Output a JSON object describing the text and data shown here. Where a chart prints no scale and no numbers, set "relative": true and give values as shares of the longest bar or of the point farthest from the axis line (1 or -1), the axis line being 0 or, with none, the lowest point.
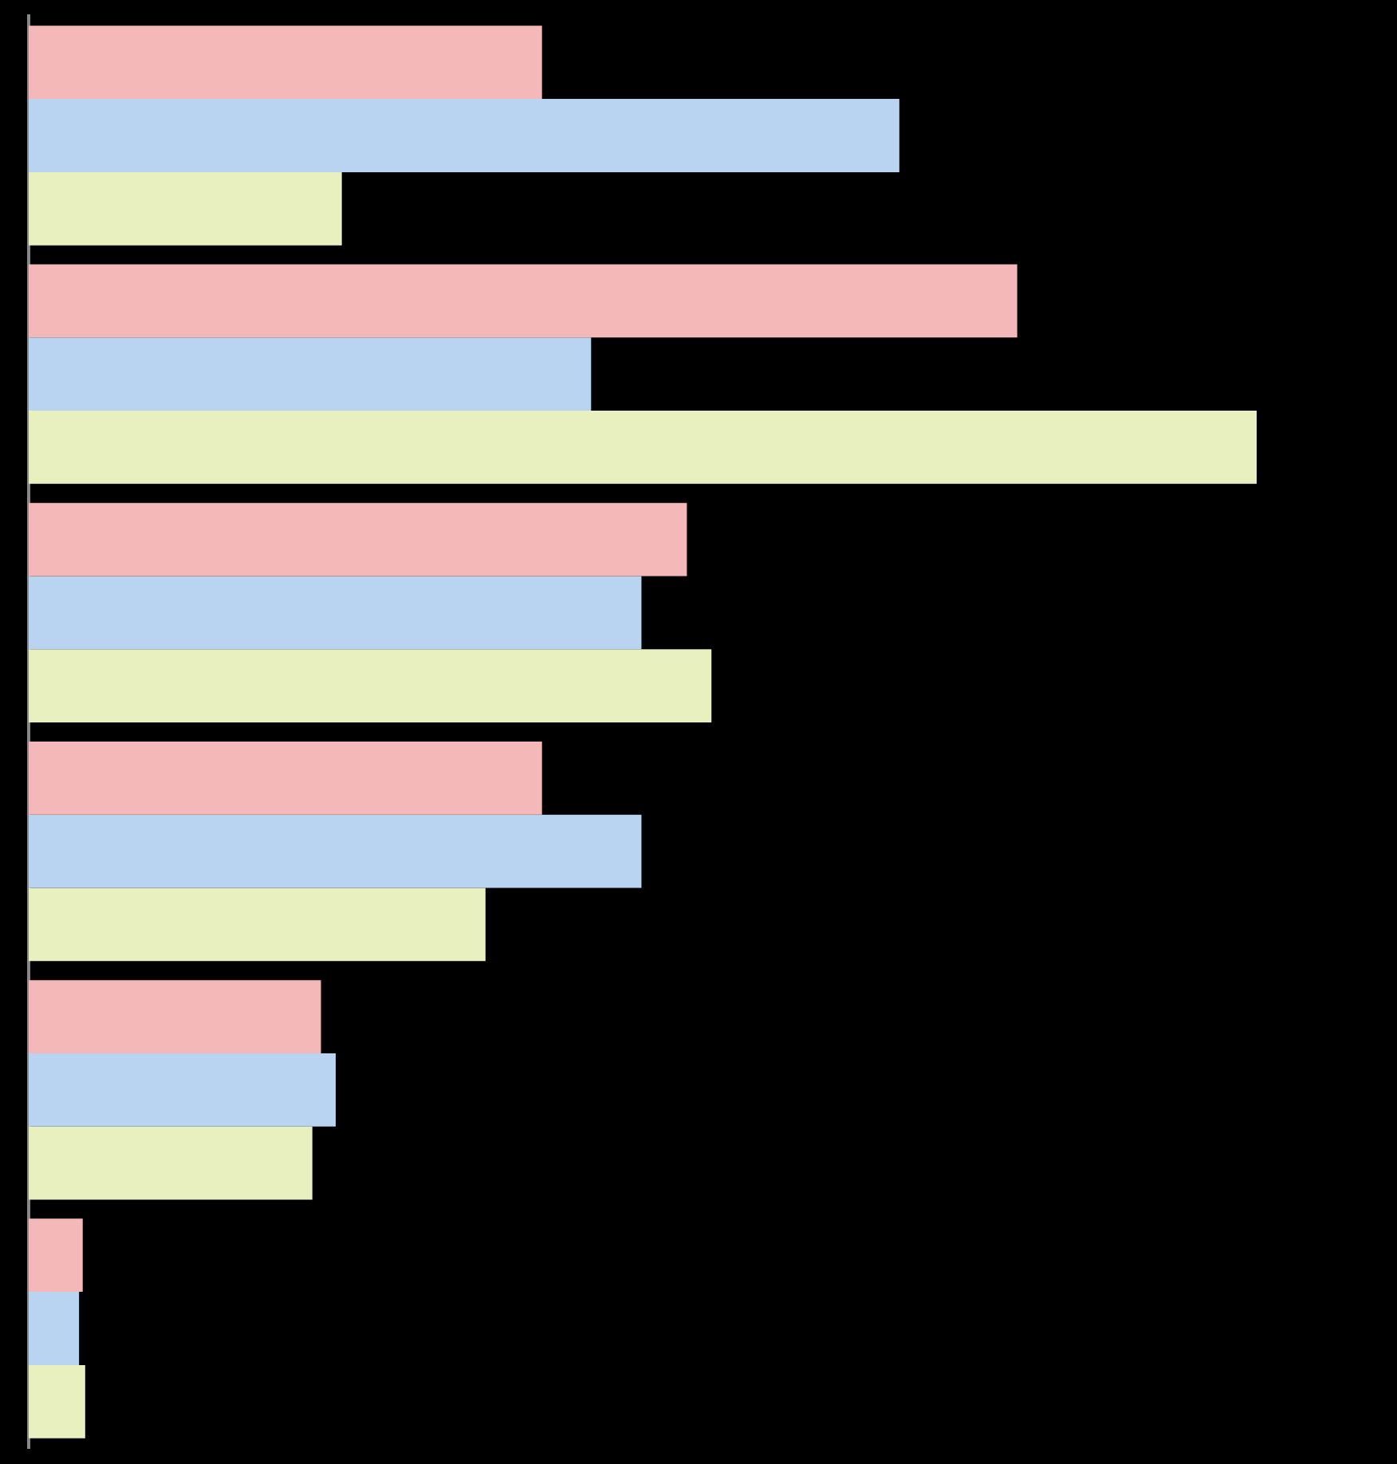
{
  "chart_data": {
    "type": "bar",
    "orientation": "horizontal",
    "relative": true,
    "legend": false,
    "categories": [
      null,
      null,
      null,
      null,
      null,
      null
    ],
    "series": [
      {
        "color": "#f4b8b8",
        "values": [
          0.418,
          0.805,
          0.536,
          0.418,
          0.238,
          0.044
        ]
      },
      {
        "color": "#b8d4f0",
        "values": [
          0.709,
          0.458,
          0.499,
          0.499,
          0.25,
          0.041
        ]
      },
      {
        "color": "#e8f0c0",
        "values": [
          0.255,
          1,
          0.556,
          0.372,
          0.231,
          0.046
        ]
      }
    ]
  }
}
